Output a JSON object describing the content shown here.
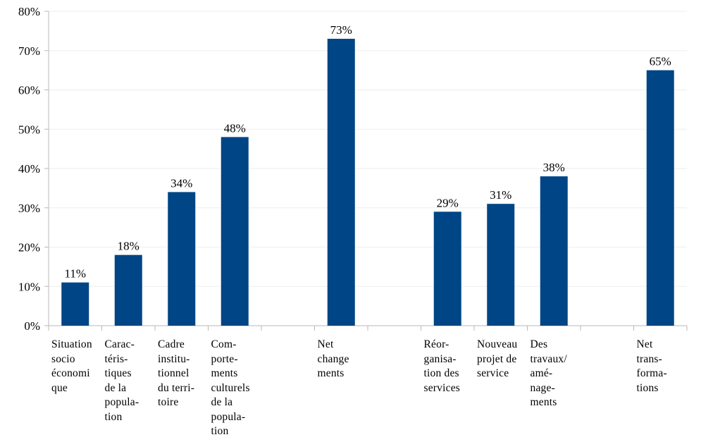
{
  "chart_data": {
    "type": "bar",
    "title": "",
    "xlabel": "",
    "ylabel": "",
    "ylim": [
      0,
      80
    ],
    "y_ticks": [
      "0%",
      "10%",
      "20%",
      "30%",
      "40%",
      "50%",
      "60%",
      "70%",
      "80%"
    ],
    "grid": true,
    "bar_color": "#004585",
    "slot_count": 12,
    "categories": [
      {
        "label": "Situation\nsocio\néconomi\nque",
        "slot": 0,
        "value": 11,
        "value_label": "11%"
      },
      {
        "label": "Carac-\ntéris-\ntiques\nde la\npopula-\ntion",
        "slot": 1,
        "value": 18,
        "value_label": "18%"
      },
      {
        "label": "Cadre\ninstitu-\ntionnel\ndu terri-\ntoire",
        "slot": 2,
        "value": 34,
        "value_label": "34%"
      },
      {
        "label": "Com-\nporte-\nments\nculturels\nde la\npopula-\ntion",
        "slot": 3,
        "value": 48,
        "value_label": "48%"
      },
      {
        "label": "Net\nchange\nments",
        "slot": 5,
        "value": 73,
        "value_label": "73%"
      },
      {
        "label": "Réor-\nganisa-\ntion des\nservices",
        "slot": 7,
        "value": 29,
        "value_label": "29%"
      },
      {
        "label": "Nouveau\nprojet de\nservice",
        "slot": 8,
        "value": 31,
        "value_label": "31%"
      },
      {
        "label": "Des\ntravaux/\namé-\nnage-\nments",
        "slot": 9,
        "value": 38,
        "value_label": "38%"
      },
      {
        "label": "Net\ntrans-\nforma-\ntions",
        "slot": 11,
        "value": 65,
        "value_label": "65%"
      }
    ]
  }
}
